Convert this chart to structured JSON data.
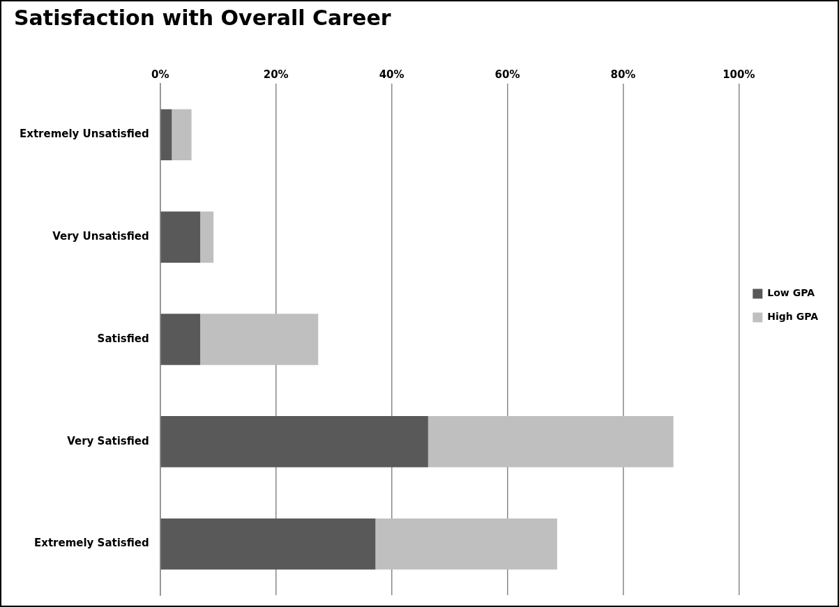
{
  "chart_data": {
    "type": "bar",
    "orientation": "horizontal",
    "stacked": true,
    "title": "Satisfaction with Overall Career",
    "categories": [
      "Extremely Unsatisfied",
      "Very Unsatisfied",
      "Satisfied",
      "Very Satisfied",
      "Extremely Satisfied"
    ],
    "series": [
      {
        "name": "Low GPA",
        "color": "#595959",
        "values": [
          2,
          6.9,
          6.9,
          46.3,
          37.2
        ]
      },
      {
        "name": "High GPA",
        "color": "#bfbfbf",
        "values": [
          3.4,
          2.3,
          20.4,
          42.4,
          31.4
        ]
      }
    ],
    "xlim": [
      0,
      100
    ],
    "xticks": [
      {
        "value": 0,
        "label": "0%"
      },
      {
        "value": 20,
        "label": "20%"
      },
      {
        "value": 40,
        "label": "40%"
      },
      {
        "value": 60,
        "label": "60%"
      },
      {
        "value": 80,
        "label": "80%"
      },
      {
        "value": 100,
        "label": "100%"
      }
    ],
    "grid": "x",
    "legend": "right"
  }
}
